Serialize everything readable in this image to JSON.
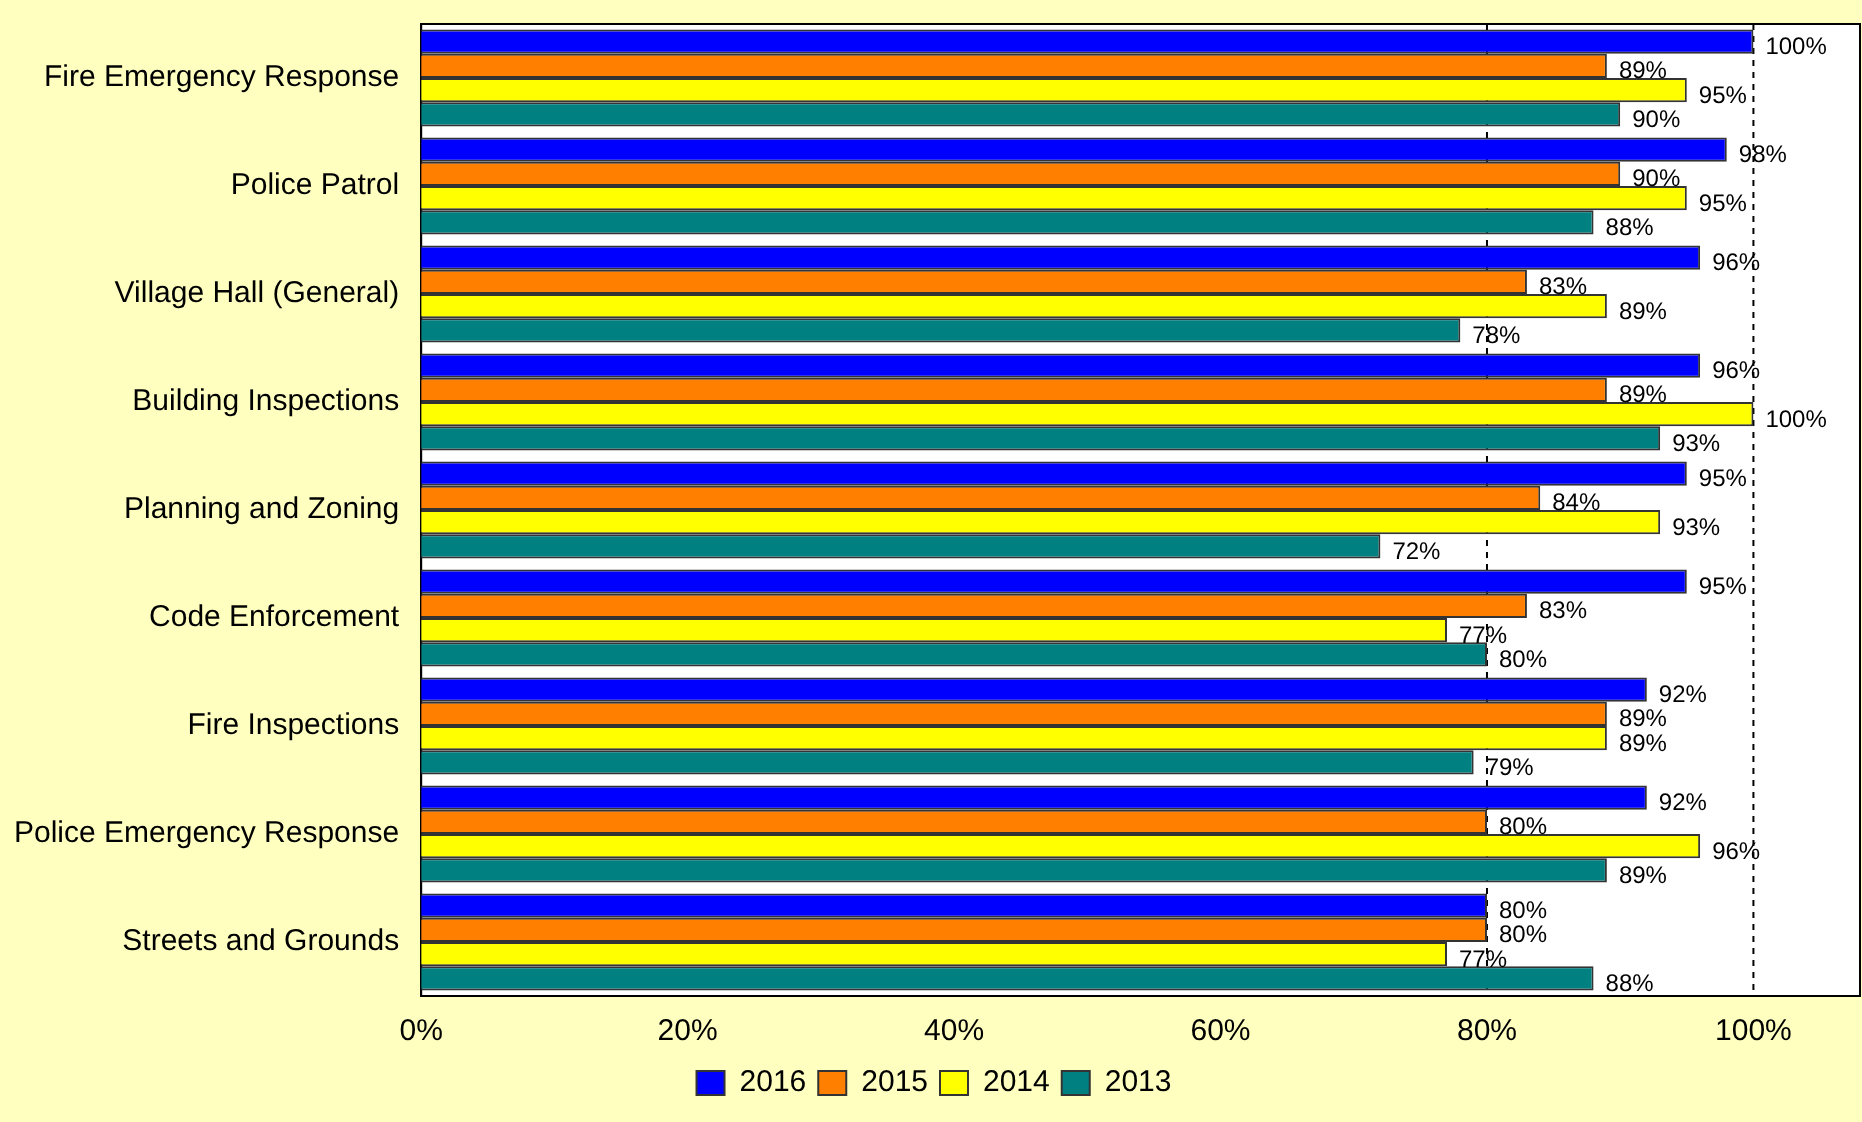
{
  "chart_data": {
    "type": "bar",
    "orientation": "horizontal",
    "categories": [
      "Fire Emergency Response",
      "Police Patrol",
      "Village Hall (General)",
      "Building Inspections",
      "Planning and Zoning",
      "Code Enforcement",
      "Fire Inspections",
      "Police Emergency Response",
      "Streets and Grounds"
    ],
    "series": [
      {
        "name": "2016",
        "color": "#0000ff",
        "values": [
          100,
          98,
          96,
          96,
          95,
          95,
          92,
          92,
          80
        ],
        "value_labels": [
          "100%",
          "98%",
          "96%",
          "96%",
          "95%",
          "95%",
          "92%",
          "92%",
          "80%"
        ]
      },
      {
        "name": "2015",
        "color": "#ff8000",
        "values": [
          89,
          90,
          83,
          89,
          84,
          83,
          89,
          80,
          80
        ],
        "value_labels": [
          "89%",
          "90%",
          "83%",
          "89%",
          "84%",
          "83%",
          "89%",
          "80%",
          "80%"
        ]
      },
      {
        "name": "2014",
        "color": "#ffff00",
        "values": [
          95,
          95,
          89,
          100,
          93,
          77,
          89,
          96,
          77
        ],
        "value_labels": [
          "95%",
          "95%",
          "89%",
          "100%",
          "93%",
          "77%",
          "89%",
          "96%",
          "77%"
        ]
      },
      {
        "name": "2013",
        "color": "#008080",
        "values": [
          90,
          88,
          78,
          93,
          72,
          80,
          79,
          89,
          88
        ],
        "value_labels": [
          "90%",
          "88%",
          "78%",
          "93%",
          "72%",
          "80%",
          "79%",
          "89%",
          "88%"
        ]
      }
    ],
    "xlim": [
      0,
      108
    ],
    "xticks": [
      {
        "value": 0,
        "label": "0%"
      },
      {
        "value": 20,
        "label": "20%"
      },
      {
        "value": 40,
        "label": "40%"
      },
      {
        "value": 60,
        "label": "60%"
      },
      {
        "value": 80,
        "label": "80%"
      },
      {
        "value": 100,
        "label": "100%"
      }
    ],
    "ref_lines": [
      {
        "axis": "x",
        "value": 80,
        "line_style": "dashed"
      },
      {
        "axis": "x",
        "value": 100,
        "line_style": "dashed"
      }
    ],
    "grid": false,
    "legend": "bottom"
  }
}
